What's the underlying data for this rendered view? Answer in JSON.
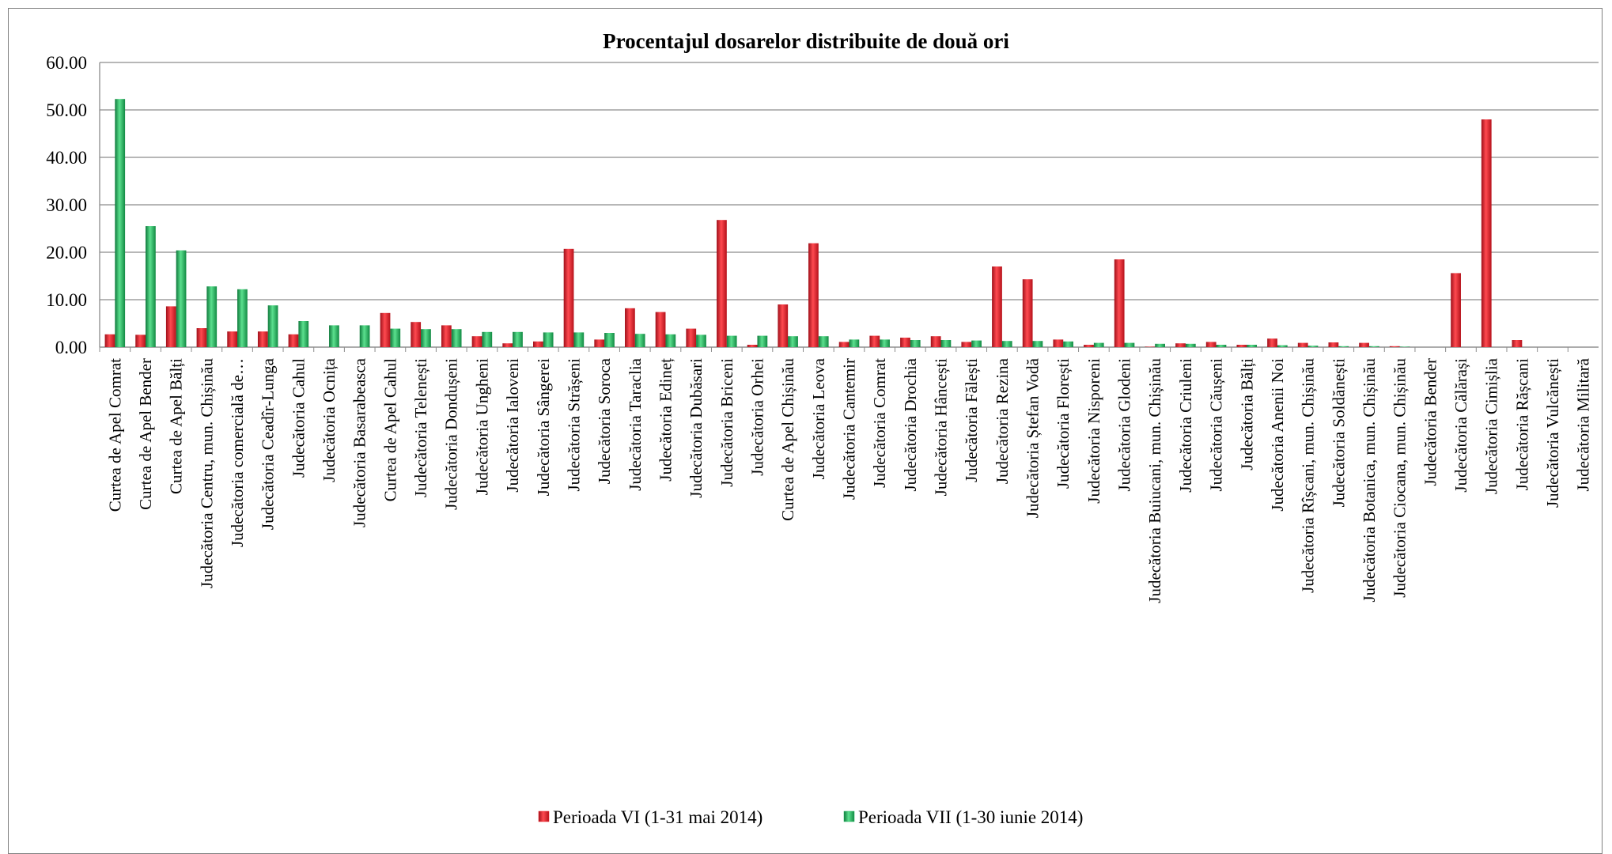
{
  "chart_data": {
    "type": "bar",
    "title": "Procentajul dosarelor distribuite de două ori",
    "xlabel": "",
    "ylabel": "",
    "ylim": [
      0,
      60
    ],
    "yticks": [
      "0.00",
      "10.00",
      "20.00",
      "30.00",
      "40.00",
      "50.00",
      "60.00"
    ],
    "grid": true,
    "legend_position": "bottom",
    "categories": [
      "Curtea de Apel Comrat",
      "Curtea de Apel Bender",
      "Curtea de Apel Bălți",
      "Judecătoria Centru, mun. Chișinău",
      "Judecătoria comercială de…",
      "Judecătoria Ceadîr-Lunga",
      "Judecătoria Cahul",
      "Judecătoria Ocnița",
      "Judecătoria Basarabeasca",
      "Curtea de Apel Cahul",
      "Judecătoria Telenești",
      "Judecătoria Dondușeni",
      "Judecătoria Ungheni",
      "Judecătoria Ialoveni",
      "Judecătoria Sângerei",
      "Judecătoria Strășeni",
      "Judecătoria Soroca",
      "Judecătoria Taraclia",
      "Judecătoria Edineț",
      "Judecătoria Dubăsari",
      "Judecătoria Briceni",
      "Judecătoria Orhei",
      "Curtea de Apel Chișinău",
      "Judecătoria Leova",
      "Judecătoria Cantemir",
      "Judecătoria Comrat",
      "Judecătoria Drochia",
      "Judecătoria Hâncești",
      "Judecătoria Fălești",
      "Judecătoria Rezina",
      "Judecătoria Ștefan Vodă",
      "Judecătoria Florești",
      "Judecătoria Nisporeni",
      "Judecătoria Glodeni",
      "Judecătoria Buiucani, mun. Chișinău",
      "Judecătoria Criuleni",
      "Judecătoria Căușeni",
      "Judecătoria Bălți",
      "Judecătoria Anenii Noi",
      "Judecătoria Rîșcani, mun. Chișinău",
      "Judecătoria Soldănești",
      "Judecătoria Botanica, mun. Chișinău",
      "Judecătoria Ciocana, mun. Chișinău",
      "Judecătoria Bender",
      "Judecătoria Călărași",
      "Judecătoria Cimișlia",
      "Judecătoria Rășcani",
      "Judecătoria Vulcănești",
      "Judecătoria Militară"
    ],
    "series": [
      {
        "name": "Perioada VI (1-31 mai 2014)",
        "color": "#ed1c24",
        "values": [
          2.7,
          2.6,
          8.6,
          4.0,
          3.3,
          3.3,
          2.7,
          0,
          0,
          7.2,
          5.3,
          4.6,
          2.3,
          0.8,
          1.2,
          20.7,
          1.6,
          8.2,
          7.4,
          3.9,
          26.8,
          0.5,
          9.0,
          21.9,
          1.1,
          2.4,
          2.0,
          2.3,
          1.1,
          17.0,
          14.3,
          1.6,
          0.5,
          18.5,
          0.1,
          0.8,
          1.1,
          0.5,
          1.8,
          0.9,
          1.0,
          0.9,
          0.2,
          0,
          15.6,
          48.0,
          1.5,
          0,
          0
        ]
      },
      {
        "name": "Perioada VII (1-30 iunie 2014)",
        "color": "#1fb05a",
        "values": [
          52.3,
          25.5,
          20.4,
          12.8,
          12.2,
          8.8,
          5.5,
          4.6,
          4.6,
          3.9,
          3.8,
          3.8,
          3.2,
          3.2,
          3.1,
          3.1,
          3.0,
          2.8,
          2.7,
          2.6,
          2.4,
          2.4,
          2.3,
          2.3,
          1.6,
          1.6,
          1.5,
          1.5,
          1.4,
          1.3,
          1.3,
          1.2,
          0.9,
          0.9,
          0.7,
          0.7,
          0.5,
          0.5,
          0.4,
          0.3,
          0.2,
          0.2,
          0.1,
          0,
          0,
          0,
          0,
          0,
          0
        ]
      }
    ]
  }
}
